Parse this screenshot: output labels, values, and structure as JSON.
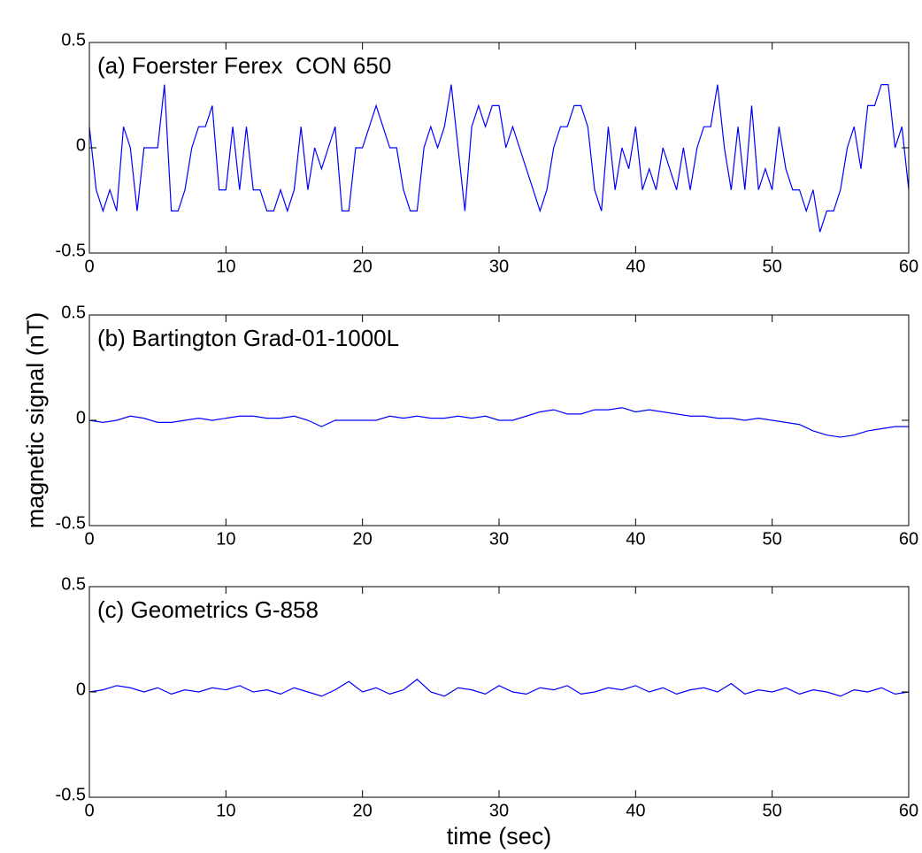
{
  "chart_data": [
    {
      "type": "line",
      "annotation": "(a) Foerster Ferex  CON 650",
      "color": "#0000ff",
      "xlim": [
        0,
        60
      ],
      "xticks": [
        0,
        10,
        20,
        30,
        40,
        50,
        60
      ],
      "ylim": [
        -0.5,
        0.5
      ],
      "yticks": [
        -0.5,
        0,
        0.5
      ],
      "x": [
        0,
        0.5,
        1,
        1.5,
        2,
        2.5,
        3,
        3.5,
        4,
        4.5,
        5,
        5.5,
        6,
        6.5,
        7,
        7.5,
        8,
        8.5,
        9,
        9.5,
        10,
        10.5,
        11,
        11.5,
        12,
        12.5,
        13,
        13.5,
        14,
        14.5,
        15,
        15.5,
        16,
        16.5,
        17,
        17.5,
        18,
        18.5,
        19,
        19.5,
        20,
        20.5,
        21,
        21.5,
        22,
        22.5,
        23,
        23.5,
        24,
        24.5,
        25,
        25.5,
        26,
        26.5,
        27,
        27.5,
        28,
        28.5,
        29,
        29.5,
        30,
        30.5,
        31,
        31.5,
        32,
        32.5,
        33,
        33.5,
        34,
        34.5,
        35,
        35.5,
        36,
        36.5,
        37,
        37.5,
        38,
        38.5,
        39,
        39.5,
        40,
        40.5,
        41,
        41.5,
        42,
        42.5,
        43,
        43.5,
        44,
        44.5,
        45,
        45.5,
        46,
        46.5,
        47,
        47.5,
        48,
        48.5,
        49,
        49.5,
        50,
        50.5,
        51,
        51.5,
        52,
        52.5,
        53,
        53.5,
        54,
        54.5,
        55,
        55.5,
        56,
        56.5,
        57,
        57.5,
        58,
        58.5,
        59,
        59.5,
        60
      ],
      "values": [
        0.1,
        -0.2,
        -0.3,
        -0.2,
        -0.3,
        0.1,
        0,
        -0.3,
        0,
        0,
        0,
        0.3,
        -0.3,
        -0.3,
        -0.2,
        0,
        0.1,
        0.1,
        0.2,
        -0.2,
        -0.2,
        0.1,
        -0.2,
        0.1,
        -0.2,
        -0.2,
        -0.3,
        -0.3,
        -0.2,
        -0.3,
        -0.2,
        0.1,
        -0.2,
        0,
        -0.1,
        0,
        0.1,
        -0.3,
        -0.3,
        0,
        0,
        0.1,
        0.2,
        0.1,
        0,
        0,
        -0.2,
        -0.3,
        -0.3,
        0,
        0.1,
        0,
        0.1,
        0.3,
        0,
        -0.3,
        0.1,
        0.2,
        0.1,
        0.2,
        0.2,
        0,
        0.1,
        0,
        -0.1,
        -0.2,
        -0.3,
        -0.2,
        0,
        0.1,
        0.1,
        0.2,
        0.2,
        0.1,
        -0.2,
        -0.3,
        0.1,
        -0.2,
        0,
        -0.1,
        0.1,
        -0.2,
        -0.1,
        -0.2,
        0,
        -0.1,
        -0.2,
        0,
        -0.2,
        0,
        0.1,
        0.1,
        0.3,
        0,
        -0.2,
        0.1,
        -0.2,
        0.2,
        -0.2,
        -0.1,
        -0.2,
        0.1,
        -0.1,
        -0.2,
        -0.2,
        -0.3,
        -0.2,
        -0.4,
        -0.3,
        -0.3,
        -0.2,
        0,
        0.1,
        -0.1,
        0.2,
        0.2,
        0.3,
        0.3,
        0,
        0.1,
        -0.2
      ]
    },
    {
      "type": "line",
      "annotation": "(b) Bartington Grad-01-1000L",
      "ylabel": "magnetic signal (nT)",
      "color": "#0000ff",
      "xlim": [
        0,
        60
      ],
      "xticks": [
        0,
        10,
        20,
        30,
        40,
        50,
        60
      ],
      "ylim": [
        -0.5,
        0.5
      ],
      "yticks": [
        -0.5,
        0,
        0.5
      ],
      "x": [
        0,
        1,
        2,
        3,
        4,
        5,
        6,
        7,
        8,
        9,
        10,
        11,
        12,
        13,
        14,
        15,
        16,
        17,
        18,
        19,
        20,
        21,
        22,
        23,
        24,
        25,
        26,
        27,
        28,
        29,
        30,
        31,
        32,
        33,
        34,
        35,
        36,
        37,
        38,
        39,
        40,
        41,
        42,
        43,
        44,
        45,
        46,
        47,
        48,
        49,
        50,
        51,
        52,
        53,
        54,
        55,
        56,
        57,
        58,
        59,
        60
      ],
      "values": [
        0,
        -0.01,
        0,
        0.02,
        0.01,
        -0.01,
        -0.01,
        0,
        0.01,
        0,
        0.01,
        0.02,
        0.02,
        0.01,
        0.01,
        0.02,
        0,
        -0.03,
        0,
        0,
        0,
        0,
        0.02,
        0.01,
        0.02,
        0.01,
        0.01,
        0.02,
        0.01,
        0.02,
        0,
        0,
        0.02,
        0.04,
        0.05,
        0.03,
        0.03,
        0.05,
        0.05,
        0.06,
        0.04,
        0.05,
        0.04,
        0.03,
        0.02,
        0.02,
        0.01,
        0.01,
        0,
        0.01,
        0,
        -0.01,
        -0.02,
        -0.05,
        -0.07,
        -0.08,
        -0.07,
        -0.05,
        -0.04,
        -0.03,
        -0.03
      ]
    },
    {
      "type": "line",
      "annotation": "(c) Geometrics G-858",
      "xlabel": "time (sec)",
      "color": "#0000ff",
      "xlim": [
        0,
        60
      ],
      "xticks": [
        0,
        10,
        20,
        30,
        40,
        50,
        60
      ],
      "ylim": [
        -0.5,
        0.5
      ],
      "yticks": [
        -0.5,
        0,
        0.5
      ],
      "x": [
        0,
        1,
        2,
        3,
        4,
        5,
        6,
        7,
        8,
        9,
        10,
        11,
        12,
        13,
        14,
        15,
        16,
        17,
        18,
        19,
        20,
        21,
        22,
        23,
        24,
        25,
        26,
        27,
        28,
        29,
        30,
        31,
        32,
        33,
        34,
        35,
        36,
        37,
        38,
        39,
        40,
        41,
        42,
        43,
        44,
        45,
        46,
        47,
        48,
        49,
        50,
        51,
        52,
        53,
        54,
        55,
        56,
        57,
        58,
        59,
        60
      ],
      "values": [
        0,
        0.01,
        0.03,
        0.02,
        0,
        0.02,
        -0.01,
        0.01,
        0,
        0.02,
        0.01,
        0.03,
        0,
        0.01,
        -0.01,
        0.02,
        0,
        -0.02,
        0.01,
        0.05,
        0,
        0.02,
        -0.01,
        0.01,
        0.06,
        0,
        -0.02,
        0.02,
        0.01,
        -0.01,
        0.03,
        0,
        -0.01,
        0.02,
        0.01,
        0.03,
        -0.01,
        0,
        0.02,
        0.01,
        0.03,
        0,
        0.02,
        -0.01,
        0.01,
        0.02,
        0,
        0.04,
        -0.01,
        0.01,
        0,
        0.02,
        -0.01,
        0.01,
        0,
        -0.02,
        0.01,
        0,
        0.02,
        -0.01,
        0
      ]
    }
  ]
}
